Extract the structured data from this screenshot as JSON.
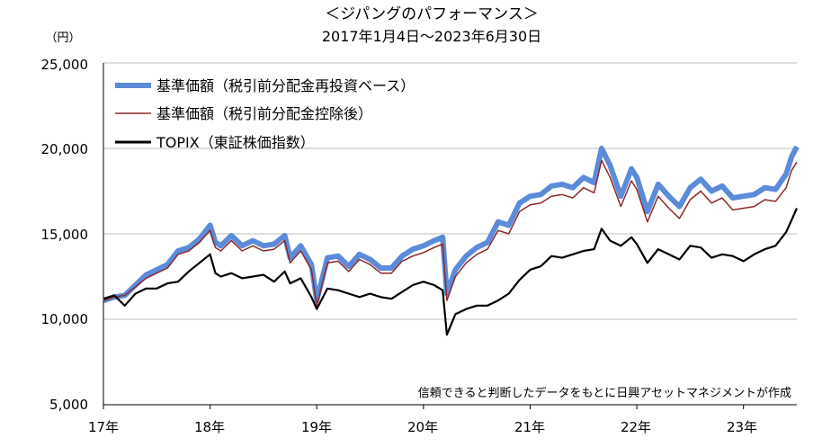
{
  "chart_data": {
    "type": "line",
    "title": "＜ジパングのパフォーマンス＞",
    "subtitle": "2017年1月4日～2023年6月30日",
    "ylabel": "（円）",
    "xlabel": "",
    "ylim": [
      5000,
      25000
    ],
    "xlim": [
      2017.0,
      2023.5
    ],
    "y_ticks": [
      "5,000",
      "10,000",
      "15,000",
      "20,000",
      "25,000"
    ],
    "x_ticks": [
      "17年",
      "18年",
      "19年",
      "20年",
      "21年",
      "22年",
      "23年"
    ],
    "grid": true,
    "legend_position": "top-left",
    "note": "信頼できると判断したデータをもとに日興アセットマネジメントが作成",
    "series": [
      {
        "name": "基準価額（税引前分配金再投資ベース）",
        "color": "#5B8BD9",
        "x": [
          2017.0,
          2017.1,
          2017.2,
          2017.3,
          2017.4,
          2017.5,
          2017.6,
          2017.7,
          2017.8,
          2017.9,
          2018.0,
          2018.05,
          2018.1,
          2018.2,
          2018.3,
          2018.4,
          2018.5,
          2018.6,
          2018.7,
          2018.75,
          2018.85,
          2018.95,
          2019.0,
          2019.1,
          2019.2,
          2019.3,
          2019.4,
          2019.5,
          2019.6,
          2019.7,
          2019.8,
          2019.9,
          2020.0,
          2020.1,
          2020.18,
          2020.22,
          2020.3,
          2020.4,
          2020.5,
          2020.6,
          2020.7,
          2020.8,
          2020.9,
          2021.0,
          2021.1,
          2021.2,
          2021.3,
          2021.4,
          2021.5,
          2021.6,
          2021.67,
          2021.75,
          2021.85,
          2021.95,
          2022.0,
          2022.1,
          2022.2,
          2022.3,
          2022.4,
          2022.5,
          2022.6,
          2022.7,
          2022.8,
          2022.9,
          2023.0,
          2023.1,
          2023.2,
          2023.3,
          2023.4,
          2023.45,
          2023.5
        ],
        "values": [
          11100,
          11300,
          11400,
          12000,
          12600,
          12900,
          13200,
          14000,
          14200,
          14700,
          15500,
          14500,
          14300,
          14900,
          14300,
          14600,
          14300,
          14400,
          14900,
          13600,
          14300,
          13200,
          11100,
          13600,
          13700,
          13100,
          13800,
          13500,
          13000,
          13000,
          13700,
          14100,
          14300,
          14600,
          14800,
          11500,
          12900,
          13700,
          14200,
          14500,
          15700,
          15500,
          16800,
          17200,
          17300,
          17800,
          17900,
          17700,
          18300,
          18000,
          20000,
          19000,
          17200,
          18800,
          18300,
          16300,
          17900,
          17200,
          16600,
          17700,
          18200,
          17500,
          17800,
          17100,
          17200,
          17300,
          17700,
          17600,
          18500,
          19500,
          20100
        ]
      },
      {
        "name": "基準価額（税引前分配金控除後）",
        "color": "#8B2A2A",
        "x": [
          2017.0,
          2017.1,
          2017.2,
          2017.3,
          2017.4,
          2017.5,
          2017.6,
          2017.7,
          2017.8,
          2017.9,
          2018.0,
          2018.05,
          2018.1,
          2018.2,
          2018.3,
          2018.4,
          2018.5,
          2018.6,
          2018.7,
          2018.75,
          2018.85,
          2018.95,
          2019.0,
          2019.1,
          2019.2,
          2019.3,
          2019.4,
          2019.5,
          2019.6,
          2019.7,
          2019.8,
          2019.9,
          2020.0,
          2020.1,
          2020.18,
          2020.22,
          2020.3,
          2020.4,
          2020.5,
          2020.6,
          2020.7,
          2020.8,
          2020.9,
          2021.0,
          2021.1,
          2021.2,
          2021.3,
          2021.4,
          2021.5,
          2021.6,
          2021.67,
          2021.75,
          2021.85,
          2021.95,
          2022.0,
          2022.1,
          2022.2,
          2022.3,
          2022.4,
          2022.5,
          2022.6,
          2022.7,
          2022.8,
          2022.9,
          2023.0,
          2023.1,
          2023.2,
          2023.3,
          2023.4,
          2023.45,
          2023.5
        ],
        "values": [
          11100,
          11300,
          11400,
          11900,
          12400,
          12700,
          13000,
          13800,
          14000,
          14500,
          15200,
          14200,
          14000,
          14600,
          14000,
          14300,
          14000,
          14100,
          14600,
          13300,
          14000,
          12900,
          10800,
          13300,
          13400,
          12800,
          13500,
          13200,
          12700,
          12700,
          13400,
          13700,
          13900,
          14200,
          14400,
          11100,
          12500,
          13300,
          13800,
          14100,
          15200,
          15000,
          16300,
          16700,
          16800,
          17200,
          17300,
          17100,
          17700,
          17400,
          19300,
          18300,
          16600,
          18100,
          17600,
          15700,
          17200,
          16500,
          15900,
          17000,
          17500,
          16800,
          17100,
          16400,
          16500,
          16600,
          17000,
          16900,
          17700,
          18700,
          19200
        ]
      },
      {
        "name": "TOPIX（東証株価指数）",
        "color": "#000000",
        "x": [
          2017.0,
          2017.1,
          2017.2,
          2017.3,
          2017.4,
          2017.5,
          2017.6,
          2017.7,
          2017.8,
          2017.9,
          2018.0,
          2018.05,
          2018.1,
          2018.2,
          2018.3,
          2018.4,
          2018.5,
          2018.6,
          2018.7,
          2018.75,
          2018.85,
          2018.95,
          2019.0,
          2019.1,
          2019.2,
          2019.3,
          2019.4,
          2019.5,
          2019.6,
          2019.7,
          2019.8,
          2019.9,
          2020.0,
          2020.1,
          2020.18,
          2020.22,
          2020.3,
          2020.4,
          2020.5,
          2020.6,
          2020.7,
          2020.8,
          2020.9,
          2021.0,
          2021.1,
          2021.2,
          2021.3,
          2021.4,
          2021.5,
          2021.6,
          2021.67,
          2021.75,
          2021.85,
          2021.95,
          2022.0,
          2022.1,
          2022.2,
          2022.3,
          2022.4,
          2022.5,
          2022.6,
          2022.7,
          2022.8,
          2022.9,
          2023.0,
          2023.1,
          2023.2,
          2023.3,
          2023.4,
          2023.45,
          2023.5
        ],
        "values": [
          11200,
          11400,
          10800,
          11500,
          11800,
          11800,
          12100,
          12200,
          12800,
          13300,
          13800,
          12700,
          12500,
          12700,
          12400,
          12500,
          12600,
          12200,
          12800,
          12100,
          12400,
          11300,
          10600,
          11800,
          11700,
          11500,
          11300,
          11500,
          11300,
          11200,
          11600,
          12000,
          12200,
          12000,
          11700,
          9100,
          10300,
          10600,
          10800,
          10800,
          11100,
          11500,
          12300,
          12900,
          13100,
          13700,
          13600,
          13800,
          14000,
          14100,
          15300,
          14600,
          14300,
          14800,
          14400,
          13300,
          14100,
          13800,
          13500,
          14300,
          14200,
          13600,
          13800,
          13700,
          13400,
          13800,
          14100,
          14300,
          15100,
          15800,
          16500
        ]
      }
    ]
  }
}
